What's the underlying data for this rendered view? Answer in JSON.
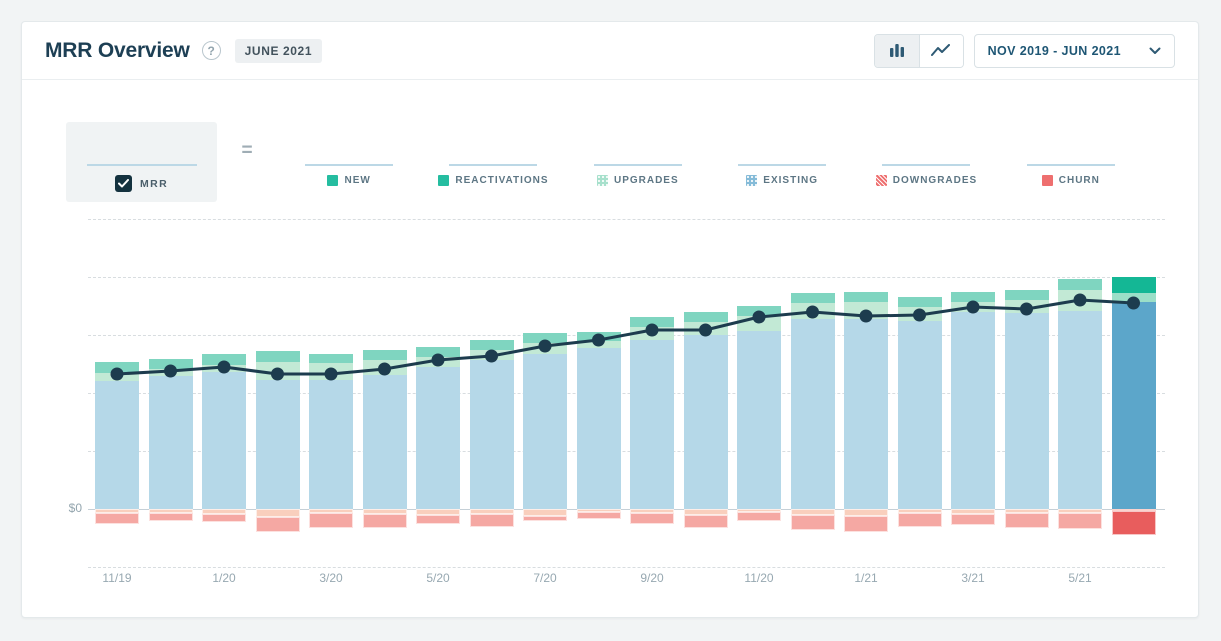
{
  "header": {
    "title": "MRR Overview",
    "period_badge": "JUNE 2021"
  },
  "controls": {
    "chart_type_toggle": {
      "options": [
        "bar",
        "line"
      ],
      "active": "bar"
    },
    "date_range_label": "NOV 2019 - JUN 2021"
  },
  "formula": {
    "mrr_label": "MRR",
    "mrr_checked": true,
    "equals": "="
  },
  "legend": {
    "items": [
      {
        "label": "NEW",
        "swatch": "solid-teal"
      },
      {
        "label": "REACTIVATIONS",
        "swatch": "solid-teal"
      },
      {
        "label": "UPGRADES",
        "swatch": "dots-mint"
      },
      {
        "label": "EXISTING",
        "swatch": "dots-blue"
      },
      {
        "label": "DOWNGRADES",
        "swatch": "hatch-red"
      },
      {
        "label": "CHURN",
        "swatch": "solid-red"
      }
    ]
  },
  "chart_data": {
    "type": "bar",
    "subtype": "stacked-bars-with-mrr-line",
    "note": "values are relative units estimated from pixels; only $0 is labeled on the y-axis",
    "months": [
      "11/19",
      "12/19",
      "1/20",
      "2/20",
      "3/20",
      "4/20",
      "5/20",
      "6/20",
      "7/20",
      "8/20",
      "9/20",
      "10/20",
      "11/20",
      "12/20",
      "1/21",
      "2/21",
      "3/21",
      "4/21",
      "5/21",
      "6/21"
    ],
    "x_tick_labels": [
      "11/19",
      "1/20",
      "3/20",
      "5/20",
      "7/20",
      "9/20",
      "11/20",
      "1/21",
      "3/21",
      "5/21"
    ],
    "series": [
      {
        "name": "New",
        "values": [
          11,
          10,
          11,
          11,
          9,
          10,
          10,
          10,
          10,
          9,
          10,
          10,
          10,
          10,
          10,
          10,
          10,
          10,
          11,
          16
        ]
      },
      {
        "name": "Reactivations",
        "values": [
          0,
          0,
          0,
          0,
          0,
          0,
          0,
          0,
          0,
          0,
          0,
          0,
          0,
          0,
          0,
          0,
          0,
          0,
          0,
          0
        ]
      },
      {
        "name": "Upgrades",
        "values": [
          8,
          7,
          7,
          18,
          17,
          15,
          10,
          10,
          11,
          7,
          13,
          13,
          15,
          16,
          17,
          14,
          10,
          13,
          21,
          9
        ]
      },
      {
        "name": "Existing",
        "values": [
          128,
          133,
          137,
          129,
          129,
          134,
          142,
          149,
          155,
          161,
          169,
          174,
          178,
          190,
          190,
          188,
          197,
          196,
          198,
          207
        ]
      },
      {
        "name": "Downgrades",
        "values": [
          -4,
          -4,
          -5,
          -8,
          -4,
          -5,
          -6,
          -5,
          -7,
          -3,
          -4,
          -6,
          -3,
          -6,
          -7,
          -4,
          -5,
          -4,
          -4,
          -2
        ]
      },
      {
        "name": "Churn",
        "values": [
          -11,
          -8,
          -8,
          -15,
          -15,
          -14,
          -9,
          -13,
          -5,
          -7,
          -11,
          -13,
          -9,
          -15,
          -16,
          -14,
          -11,
          -15,
          -16,
          -24
        ]
      }
    ],
    "line": {
      "name": "MRR",
      "values": [
        135,
        138,
        142,
        135,
        135,
        140,
        149,
        153,
        163,
        169,
        179,
        179,
        192,
        197,
        193,
        194,
        202,
        200,
        209,
        206
      ]
    },
    "highlighted_index": 19,
    "y_axis": {
      "zero_label": "$0",
      "gridlines": "dashed"
    },
    "legend_position": "top"
  },
  "colors": {
    "accent_teal": "#25bda0",
    "line": "#1d3c4e",
    "muted": {
      "new": "#7fd5c0",
      "upgrades": "#c2e9d5",
      "existing": "#b5d8e8",
      "downgrades": "#f9cfbd",
      "churn": "#f5a8a3"
    },
    "current": {
      "new": "#14b795",
      "upgrades": "#9bdfc8",
      "existing": "#5ca6ca",
      "downgrades": "#f08274",
      "churn": "#e85d5d"
    }
  }
}
